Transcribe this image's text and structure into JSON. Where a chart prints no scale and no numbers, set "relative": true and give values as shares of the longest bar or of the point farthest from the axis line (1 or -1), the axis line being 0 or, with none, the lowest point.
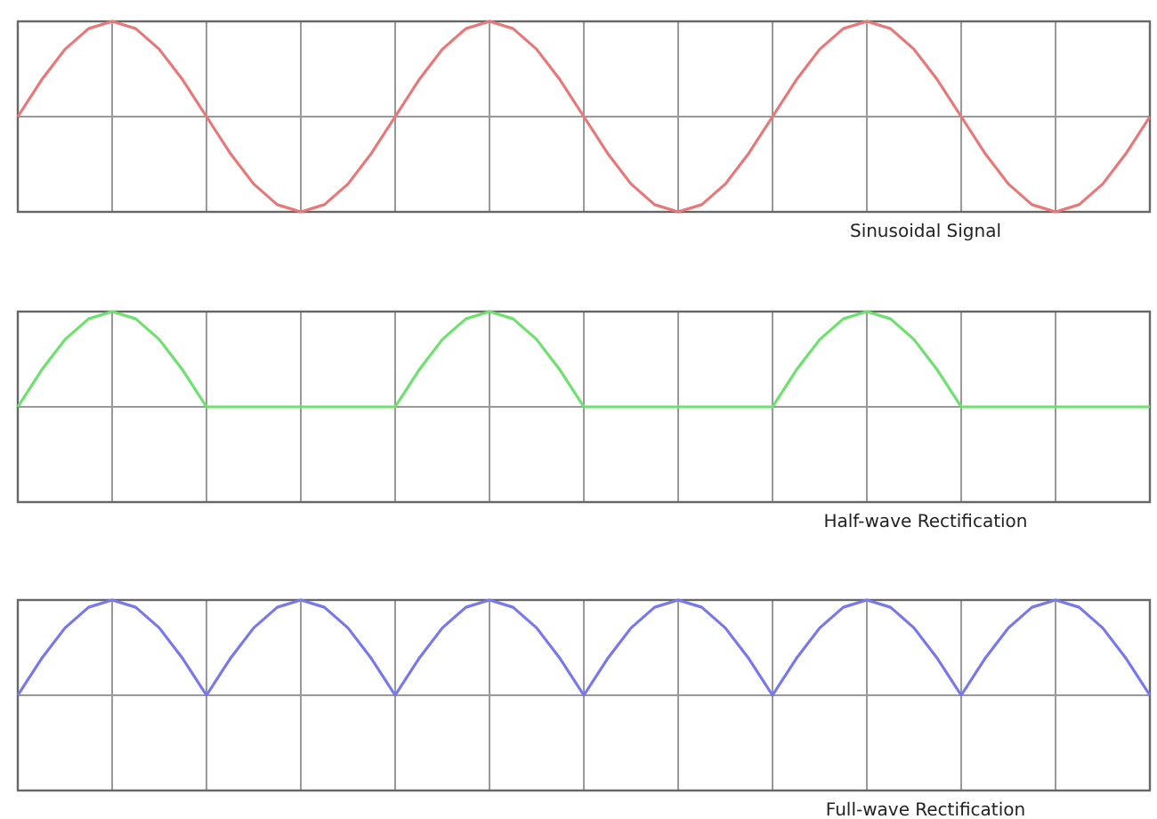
{
  "chart_data": [
    {
      "type": "line",
      "relative": true,
      "grid": true,
      "marker": "none",
      "line_style": "solid",
      "xlabel": "Sinusoidal Signal",
      "categories": [
        null,
        null,
        null,
        null,
        null,
        null,
        null,
        null,
        null,
        null,
        null,
        null,
        null,
        null,
        null,
        null,
        null,
        null,
        null,
        null,
        null,
        null,
        null,
        null,
        null,
        null,
        null,
        null,
        null,
        null,
        null,
        null,
        null,
        null,
        null,
        null,
        null,
        null,
        null,
        null,
        null,
        null,
        null,
        null,
        null,
        null,
        null,
        null,
        null
      ],
      "series": [
        {
          "color": "#e87878",
          "values": [
            0,
            0.383,
            0.707,
            0.924,
            1,
            0.924,
            0.707,
            0.383,
            0,
            -0.383,
            -0.707,
            -0.924,
            -1,
            -0.924,
            -0.707,
            -0.383,
            0,
            0.383,
            0.707,
            0.924,
            1,
            0.924,
            0.707,
            0.383,
            0,
            -0.383,
            -0.707,
            -0.924,
            -1,
            -0.924,
            -0.707,
            -0.383,
            0,
            0.383,
            0.707,
            0.924,
            1,
            0.924,
            0.707,
            0.383,
            0,
            -0.383,
            -0.707,
            -0.924,
            -1,
            -0.924,
            -0.707,
            -0.383,
            0
          ]
        }
      ]
    },
    {
      "type": "line",
      "relative": true,
      "grid": true,
      "marker": "none",
      "line_style": "solid",
      "xlabel": "Half-wave Rectification",
      "categories": [
        null,
        null,
        null,
        null,
        null,
        null,
        null,
        null,
        null,
        null,
        null,
        null,
        null,
        null,
        null,
        null,
        null,
        null,
        null,
        null,
        null,
        null,
        null,
        null,
        null,
        null,
        null,
        null,
        null,
        null,
        null,
        null,
        null,
        null,
        null,
        null,
        null,
        null,
        null,
        null,
        null,
        null,
        null,
        null,
        null,
        null,
        null,
        null,
        null
      ],
      "series": [
        {
          "color": "#6ee06e",
          "values": [
            0,
            0.383,
            0.707,
            0.924,
            1,
            0.924,
            0.707,
            0.383,
            0,
            0,
            0,
            0,
            0,
            0,
            0,
            0,
            0,
            0.383,
            0.707,
            0.924,
            1,
            0.924,
            0.707,
            0.383,
            0,
            0,
            0,
            0,
            0,
            0,
            0,
            0,
            0,
            0.383,
            0.707,
            0.924,
            1,
            0.924,
            0.707,
            0.383,
            0,
            0,
            0,
            0,
            0,
            0,
            0,
            0,
            0
          ]
        }
      ]
    },
    {
      "type": "line",
      "relative": true,
      "grid": true,
      "marker": "none",
      "line_style": "solid",
      "xlabel": "Full-wave Rectification",
      "categories": [
        null,
        null,
        null,
        null,
        null,
        null,
        null,
        null,
        null,
        null,
        null,
        null,
        null,
        null,
        null,
        null,
        null,
        null,
        null,
        null,
        null,
        null,
        null,
        null,
        null,
        null,
        null,
        null,
        null,
        null,
        null,
        null,
        null,
        null,
        null,
        null,
        null,
        null,
        null,
        null,
        null,
        null,
        null,
        null,
        null,
        null,
        null,
        null,
        null
      ],
      "series": [
        {
          "color": "#7878ee",
          "values": [
            0,
            0.383,
            0.707,
            0.924,
            1,
            0.924,
            0.707,
            0.383,
            0,
            0.383,
            0.707,
            0.924,
            1,
            0.924,
            0.707,
            0.383,
            0,
            0.383,
            0.707,
            0.924,
            1,
            0.924,
            0.707,
            0.383,
            0,
            0.383,
            0.707,
            0.924,
            1,
            0.924,
            0.707,
            0.383,
            0,
            0.383,
            0.707,
            0.924,
            1,
            0.924,
            0.707,
            0.383,
            0,
            0.383,
            0.707,
            0.924,
            1,
            0.924,
            0.707,
            0.383,
            0
          ]
        }
      ]
    }
  ]
}
